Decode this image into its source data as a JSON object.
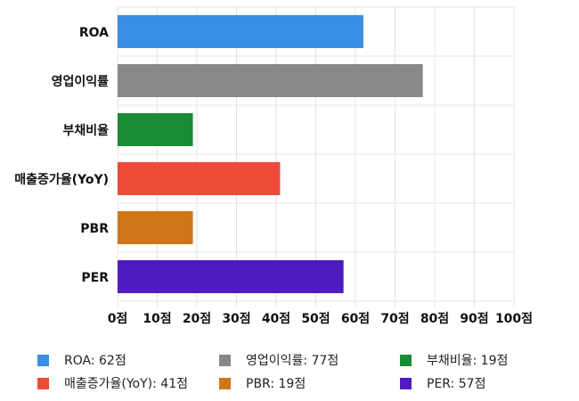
{
  "chart_data": {
    "type": "bar",
    "orientation": "horizontal",
    "categories": [
      "ROA",
      "영업이익률",
      "부채비율",
      "매출증가율(YoY)",
      "PBR",
      "PER"
    ],
    "values": [
      62,
      77,
      19,
      41,
      19,
      57
    ],
    "colors": [
      "#3a8ee6",
      "#888888",
      "#1a8c35",
      "#ee4c38",
      "#d07518",
      "#4f1bc0"
    ],
    "xlim": [
      0,
      100
    ],
    "xticks": [
      "0점",
      "10점",
      "20점",
      "30점",
      "40점",
      "50점",
      "60점",
      "70점",
      "80점",
      "90점",
      "100점"
    ],
    "grid": true,
    "legend_position": "bottom",
    "legend": [
      "ROA: 62점",
      "영업이익률: 77점",
      "부채비율: 19점",
      "매출증가율(YoY): 41점",
      "PBR: 19점",
      "PER: 57점"
    ]
  }
}
